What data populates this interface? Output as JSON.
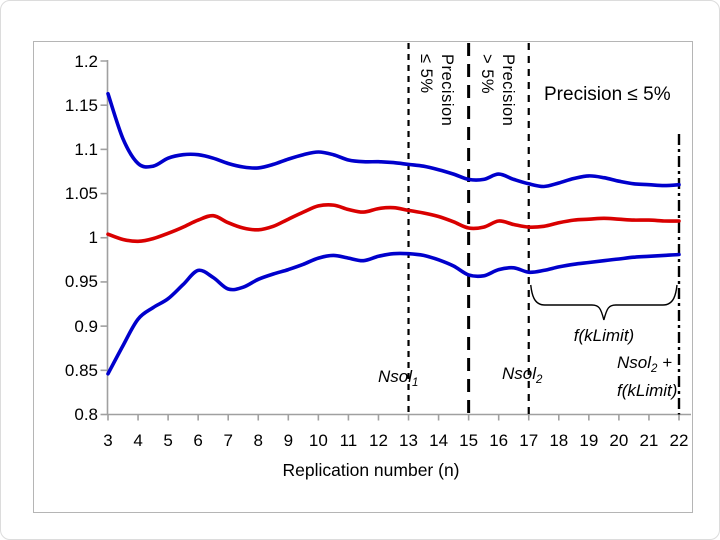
{
  "colors": {
    "confidence_line": "#0000cc",
    "mean_line": "#d90000",
    "axis": "#a0a0a0",
    "reference_lines": "#000000",
    "frame_border": "#b5b5b5"
  },
  "chart_data": {
    "type": "line",
    "title": "",
    "xlabel": "Replication number (n)",
    "ylabel": "",
    "xlim": [
      3,
      22
    ],
    "ylim": [
      0.8,
      1.2
    ],
    "grid": false,
    "legend": "none",
    "x_tick_values": [
      3,
      4,
      5,
      6,
      7,
      8,
      9,
      10,
      11,
      12,
      13,
      14,
      15,
      16,
      17,
      18,
      19,
      20,
      21,
      22
    ],
    "x_tick_labels": [
      "3",
      "4",
      "5",
      "6",
      "7",
      "8",
      "9",
      "10",
      "11",
      "12",
      "13",
      "14",
      "15",
      "16",
      "17",
      "18",
      "19",
      "20",
      "21",
      "22"
    ],
    "y_tick_values": [
      0.8,
      0.85,
      0.9,
      0.95,
      1.0,
      1.05,
      1.1,
      1.15,
      1.2
    ],
    "y_tick_labels": [
      "0.8",
      "0.85",
      "0.9",
      "0.95",
      "1",
      "1.05",
      "1.1",
      "1.15",
      "1.2"
    ],
    "x_start": 3,
    "x_step": 0.5,
    "series": [
      {
        "name": "upper-confidence-limit",
        "color": "#0000cc",
        "values": [
          1.163,
          1.112,
          1.084,
          1.081,
          1.09,
          1.094,
          1.094,
          1.09,
          1.084,
          1.08,
          1.079,
          1.083,
          1.089,
          1.094,
          1.097,
          1.094,
          1.088,
          1.086,
          1.086,
          1.085,
          1.083,
          1.081,
          1.077,
          1.072,
          1.066,
          1.066,
          1.072,
          1.066,
          1.061,
          1.058,
          1.062,
          1.067,
          1.07,
          1.068,
          1.064,
          1.061,
          1.06,
          1.059,
          1.06
        ]
      },
      {
        "name": "mean-ratio",
        "color": "#d90000",
        "values": [
          1.004,
          0.998,
          0.996,
          0.999,
          1.005,
          1.012,
          1.02,
          1.025,
          1.017,
          1.011,
          1.009,
          1.013,
          1.021,
          1.029,
          1.036,
          1.037,
          1.032,
          1.029,
          1.033,
          1.034,
          1.031,
          1.028,
          1.024,
          1.018,
          1.011,
          1.012,
          1.019,
          1.015,
          1.012,
          1.013,
          1.017,
          1.02,
          1.021,
          1.022,
          1.021,
          1.02,
          1.02,
          1.019,
          1.019
        ]
      },
      {
        "name": "lower-confidence-limit",
        "color": "#0000cc",
        "values": [
          0.846,
          0.878,
          0.908,
          0.921,
          0.931,
          0.947,
          0.963,
          0.955,
          0.942,
          0.944,
          0.953,
          0.959,
          0.964,
          0.97,
          0.977,
          0.98,
          0.977,
          0.974,
          0.979,
          0.982,
          0.982,
          0.98,
          0.975,
          0.968,
          0.958,
          0.957,
          0.964,
          0.966,
          0.961,
          0.963,
          0.967,
          0.97,
          0.972,
          0.974,
          0.976,
          0.978,
          0.979,
          0.98,
          0.981
        ]
      }
    ],
    "vlines": [
      {
        "name": "nsol1-line",
        "x": 13,
        "dash": "short"
      },
      {
        "name": "precision-boundary-line",
        "x": 15,
        "dash": "long"
      },
      {
        "name": "nsol2-line",
        "x": 17,
        "dash": "medium"
      },
      {
        "name": "nsol2-plus-fklimit-line",
        "x": 22,
        "dash": "dashdot"
      }
    ],
    "brace": {
      "x_from": 17,
      "x_to": 22
    },
    "annotations": {
      "region1": {
        "line1": "Precision",
        "line2": "≤ 5%"
      },
      "region2": {
        "line1": "Precision",
        "line2": "> 5%"
      },
      "region3": {
        "text": "Precision ≤ 5%"
      },
      "nsol1": {
        "base": "Nsol",
        "sub": "1"
      },
      "nsol2": {
        "base": "Nsol",
        "sub": "2"
      },
      "fklimit": {
        "text": "f(kLimit)"
      },
      "nsol2_plus": {
        "base": "Nsol",
        "sub": "2",
        "tail": " +",
        "line2": "f(kLimit)"
      }
    }
  }
}
